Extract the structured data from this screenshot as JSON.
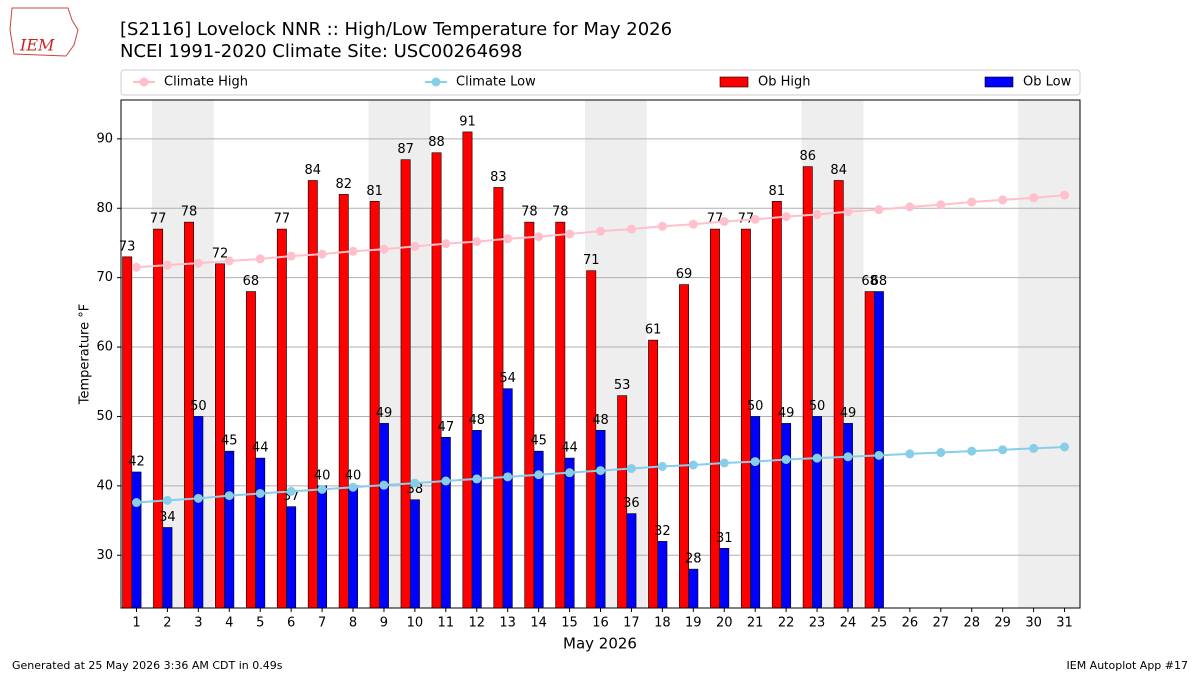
{
  "logo_text": "IEM",
  "chart_data": {
    "type": "bar-line",
    "title": "[S2116] Lovelock NNR :: High/Low Temperature for May 2026",
    "subtitle": "NCEI 1991-2020 Climate Site: USC00264698",
    "ylabel": "Temperature °F",
    "xlabel": "May 2026",
    "x": [
      1,
      2,
      3,
      4,
      5,
      6,
      7,
      8,
      9,
      10,
      11,
      12,
      13,
      14,
      15,
      16,
      17,
      18,
      19,
      20,
      21,
      22,
      23,
      24,
      25,
      26,
      27,
      28,
      29,
      30,
      31
    ],
    "xlim": [
      0.5,
      31.5
    ],
    "ylim": [
      22.4,
      95.6
    ],
    "yticks": [
      30,
      40,
      50,
      60,
      70,
      80,
      90
    ],
    "grid": true,
    "series": [
      {
        "name": "Climate High",
        "kind": "line",
        "color": "#ffc0cb",
        "values": [
          71.5,
          71.8,
          72.1,
          72.4,
          72.7,
          73.1,
          73.4,
          73.8,
          74.1,
          74.5,
          74.9,
          75.2,
          75.6,
          75.9,
          76.3,
          76.7,
          77.0,
          77.4,
          77.7,
          78.1,
          78.4,
          78.8,
          79.1,
          79.5,
          79.8,
          80.2,
          80.5,
          80.9,
          81.2,
          81.5,
          81.9
        ]
      },
      {
        "name": "Climate Low",
        "kind": "line",
        "color": "#87ceeb",
        "values": [
          37.6,
          37.9,
          38.2,
          38.6,
          38.9,
          39.2,
          39.5,
          39.8,
          40.1,
          40.4,
          40.7,
          41.0,
          41.3,
          41.6,
          41.9,
          42.2,
          42.5,
          42.8,
          43.0,
          43.3,
          43.5,
          43.8,
          44.0,
          44.2,
          44.4,
          44.6,
          44.8,
          45.0,
          45.2,
          45.4,
          45.6
        ]
      },
      {
        "name": "Ob High",
        "kind": "bar",
        "color": "#ff0000",
        "values": [
          73,
          77,
          78,
          72,
          68,
          77,
          84,
          82,
          81,
          87,
          88,
          91,
          83,
          78,
          78,
          71,
          53,
          61,
          69,
          77,
          77,
          81,
          86,
          84,
          68,
          null,
          null,
          null,
          null,
          null,
          null
        ]
      },
      {
        "name": "Ob Low",
        "kind": "bar",
        "color": "#0000ff",
        "values": [
          42,
          34,
          50,
          45,
          44,
          37,
          40,
          40,
          49,
          38,
          47,
          48,
          54,
          45,
          44,
          48,
          36,
          32,
          28,
          31,
          50,
          49,
          50,
          49,
          68,
          null,
          null,
          null,
          null,
          null,
          null
        ]
      }
    ],
    "footer_left": "Generated at 25 May 2026 3:36 AM CDT in 0.49s",
    "footer_right": "IEM Autoplot App #17"
  }
}
